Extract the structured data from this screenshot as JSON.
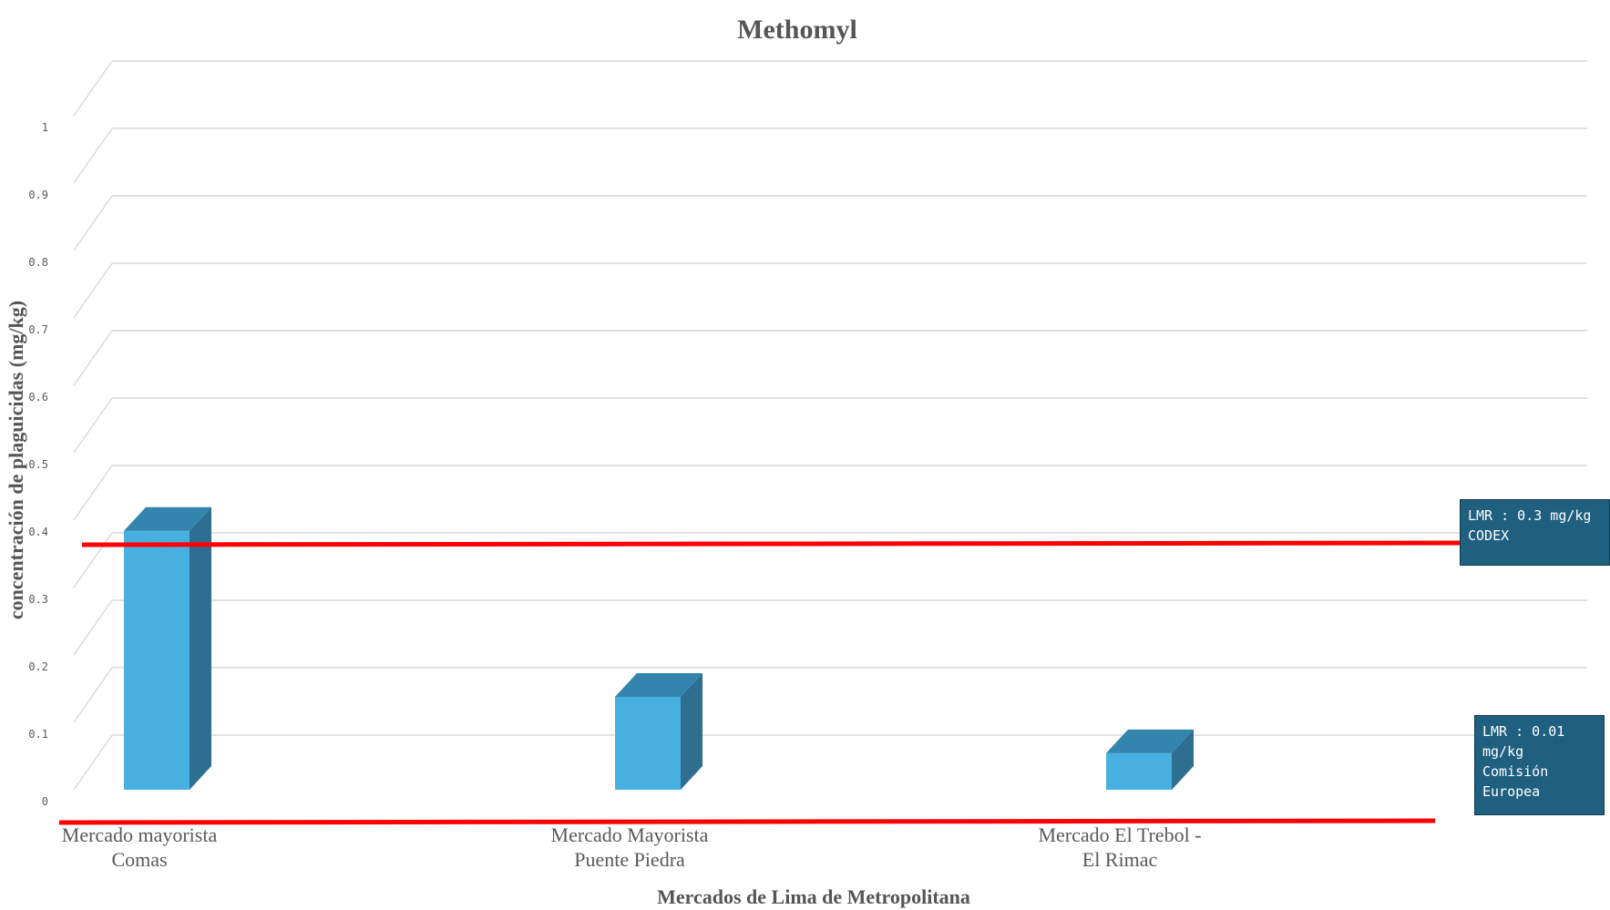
{
  "colors": {
    "bar_front": "#47b0e0",
    "bar_side": "#2e6e90",
    "bar_top": "#3385ad",
    "grid": "#d9d9d9",
    "limit_line": "#ff0000",
    "callout_bg": "#1f5f7f"
  },
  "chart_data": {
    "type": "bar",
    "title": "Methomyl",
    "xlabel": "Mercados de Lima de Metropolitana",
    "ylabel": "concentración de plaguicidas (mg/kg)",
    "ylim": [
      0,
      1
    ],
    "yticks": [
      "0",
      "0.1",
      "0.2",
      "0.3",
      "0.4",
      "0.5",
      "0.6",
      "0.7",
      "0.8",
      "0.9",
      "1"
    ],
    "categories": [
      [
        "Mercado mayorista",
        "Comas"
      ],
      [
        "Mercado Mayorista",
        "Puente Piedra"
      ],
      [
        "Mercado El Trebol -",
        "El Rimac"
      ]
    ],
    "values": [
      0.39,
      0.14,
      0.055
    ],
    "grid": true,
    "legend": "none",
    "reference_lines": [
      {
        "label": "LMR  : 0.3  mg/kg\nCODEX"
      },
      {
        "label": "LMR  : 0.01\nmg/kg\nComisión\nEuropea"
      }
    ]
  }
}
